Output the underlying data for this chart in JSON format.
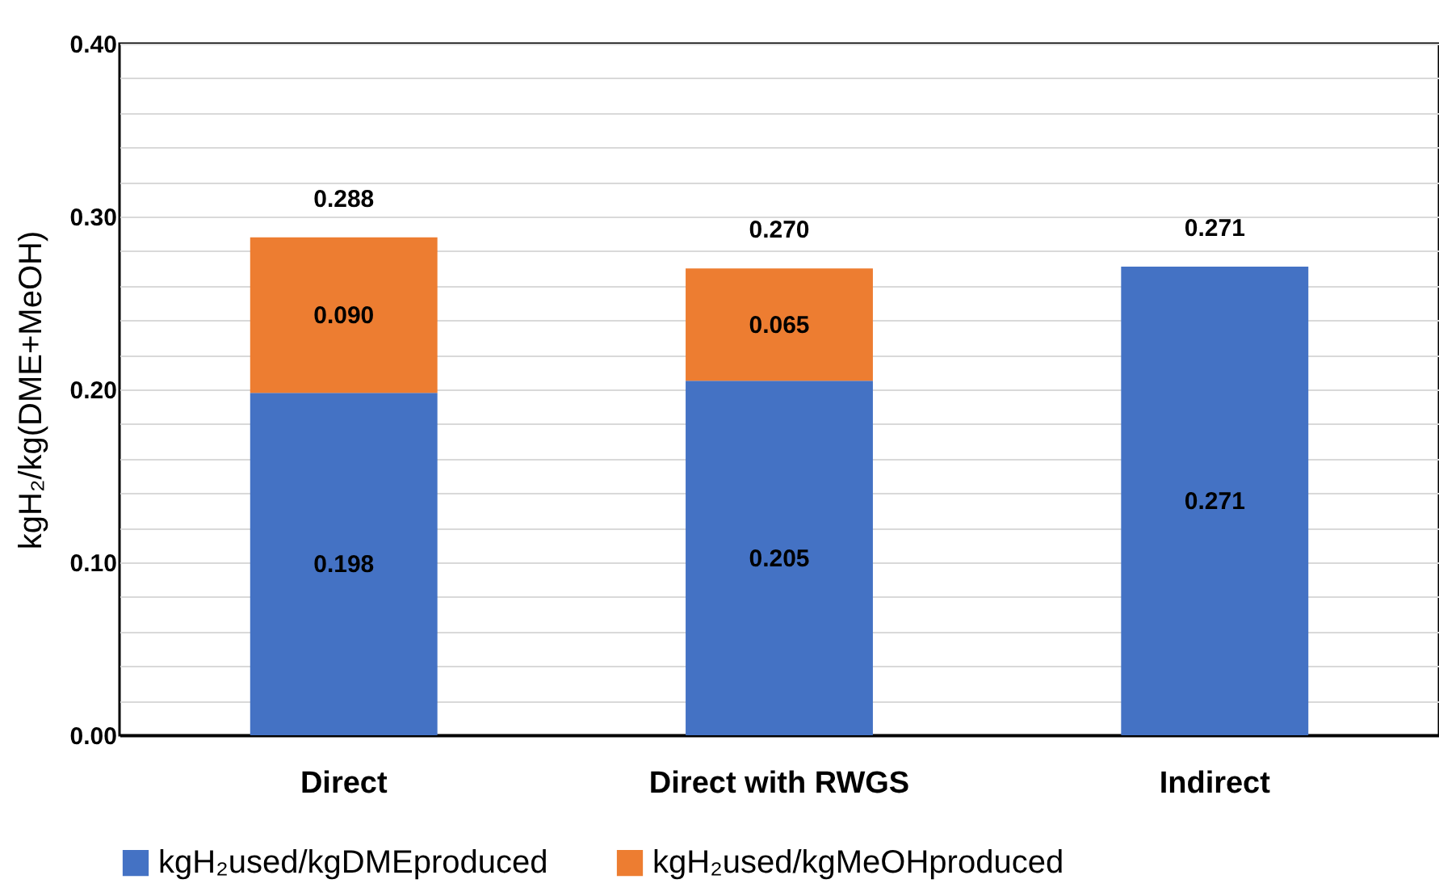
{
  "chart_data": {
    "type": "bar",
    "stacked": true,
    "ylabel": "kgH₂/kg(DME+MeOH)",
    "categories": [
      "Direct",
      "Direct with RWGS",
      "Indirect"
    ],
    "series": [
      {
        "name": "kgH₂used/kgDMEproduced",
        "color": "#4472c4",
        "values": [
          0.198,
          0.205,
          0.271
        ],
        "value_labels": [
          "0.198",
          "0.205",
          "0.271"
        ]
      },
      {
        "name": "kgH₂used/kgMeOHproduced",
        "color": "#ed7d31",
        "values": [
          0.09,
          0.065,
          null
        ],
        "value_labels": [
          "0.090",
          "0.065",
          null
        ]
      }
    ],
    "totals": [
      "0.288",
      "0.270",
      "0.271"
    ],
    "ylim": [
      0,
      0.4
    ],
    "yticks": [
      {
        "value": 0,
        "label": "0.00"
      },
      {
        "value": 0.02,
        "label": null
      },
      {
        "value": 0.04,
        "label": null
      },
      {
        "value": 0.06,
        "label": null
      },
      {
        "value": 0.08,
        "label": null
      },
      {
        "value": 0.1,
        "label": "0.10"
      },
      {
        "value": 0.12,
        "label": null
      },
      {
        "value": 0.14,
        "label": null
      },
      {
        "value": 0.16,
        "label": null
      },
      {
        "value": 0.18,
        "label": null
      },
      {
        "value": 0.2,
        "label": "0.20"
      },
      {
        "value": 0.22,
        "label": null
      },
      {
        "value": 0.24,
        "label": null
      },
      {
        "value": 0.26,
        "label": null
      },
      {
        "value": 0.28,
        "label": null
      },
      {
        "value": 0.3,
        "label": "0.30"
      },
      {
        "value": 0.32,
        "label": null
      },
      {
        "value": 0.34,
        "label": null
      },
      {
        "value": 0.36,
        "label": null
      },
      {
        "value": 0.38,
        "label": null
      },
      {
        "value": 0.4,
        "label": "0.40"
      }
    ],
    "grid": true,
    "legend": "bottom"
  }
}
